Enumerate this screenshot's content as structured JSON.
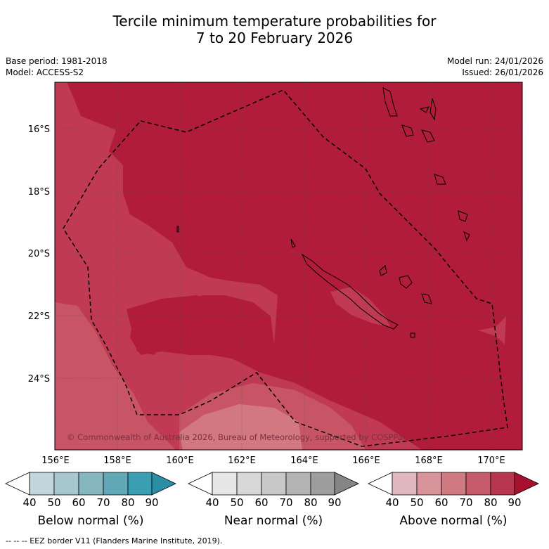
{
  "title_line1": "Tercile minimum temperature probabilities for",
  "title_line2": "7 to 20 February 2026",
  "meta": {
    "base_period": "Base period: 1981-2018",
    "model": "Model: ACCESS-S2",
    "model_run": "Model run: 24/01/2026",
    "issued": "Issued: 26/01/2026"
  },
  "map": {
    "lat_labels": [
      "16°S",
      "18°S",
      "20°S",
      "22°S",
      "24°S"
    ],
    "lon_labels": [
      "156°E",
      "158°E",
      "160°E",
      "162°E",
      "164°E",
      "166°E",
      "168°E",
      "170°E"
    ],
    "copyright": "© Commonwealth of Australia 2026, Bureau of Meteorology, supported by COSPPac",
    "colors": {
      "above_90": "#b01c3a",
      "above_80": "#c03a54",
      "above_70": "#c85565",
      "above_60": "#d17880"
    }
  },
  "colorbars": {
    "ticks": [
      "40",
      "50",
      "60",
      "70",
      "80",
      "90"
    ],
    "below": {
      "label": "Below normal (%)",
      "colors": [
        "#ffffff",
        "#c1d6dc",
        "#a5c7cd",
        "#86b6c0",
        "#62a7b5",
        "#3b9eb2",
        "#2a8fa6"
      ]
    },
    "near": {
      "label": "Near normal (%)",
      "colors": [
        "#ffffff",
        "#e6e6e6",
        "#d7d7d7",
        "#c8c8c8",
        "#b4b4b4",
        "#9e9e9e",
        "#858585"
      ]
    },
    "above": {
      "label": "Above normal (%)",
      "colors": [
        "#ffffff",
        "#e1b8c0",
        "#d9949b",
        "#ce7a80",
        "#c45a6a",
        "#b8354f",
        "#a8102f"
      ]
    }
  },
  "footer": "--  --  -- EEZ border V11 (Flanders Marine Institute, 2019)."
}
